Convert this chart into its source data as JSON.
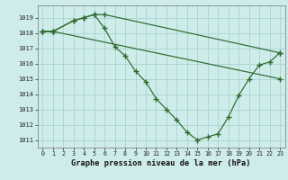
{
  "line1_x": [
    0,
    1,
    3,
    4,
    5,
    6,
    23
  ],
  "line1_y": [
    1018.1,
    1018.1,
    1018.8,
    1019.0,
    1019.2,
    1019.2,
    1016.7
  ],
  "line2_x": [
    0,
    1,
    3,
    4,
    5,
    6,
    7,
    8,
    9,
    10,
    11,
    12,
    13,
    14,
    15,
    16,
    17,
    18,
    19,
    20,
    21,
    22,
    23
  ],
  "line2_y": [
    1018.1,
    1018.1,
    1018.8,
    1019.0,
    1019.2,
    1018.3,
    1017.1,
    1016.5,
    1015.5,
    1014.8,
    1013.7,
    1013.0,
    1012.3,
    1011.5,
    1011.0,
    1011.2,
    1011.4,
    1012.5,
    1013.9,
    1015.0,
    1015.9,
    1016.1,
    1016.7
  ],
  "line3_x": [
    0,
    1,
    23
  ],
  "line3_y": [
    1018.1,
    1018.1,
    1015.0
  ],
  "bg_color": "#ceecea",
  "grid_color": "#aad4d0",
  "line_color": "#2d6a2d",
  "xlabel": "Graphe pression niveau de la mer (hPa)",
  "ylim": [
    1010.5,
    1019.8
  ],
  "xlim": [
    -0.5,
    23.5
  ],
  "yticks": [
    1011,
    1012,
    1013,
    1014,
    1015,
    1016,
    1017,
    1018,
    1019
  ],
  "xticks": [
    0,
    1,
    2,
    3,
    4,
    5,
    6,
    7,
    8,
    9,
    10,
    11,
    12,
    13,
    14,
    15,
    16,
    17,
    18,
    19,
    20,
    21,
    22,
    23
  ]
}
